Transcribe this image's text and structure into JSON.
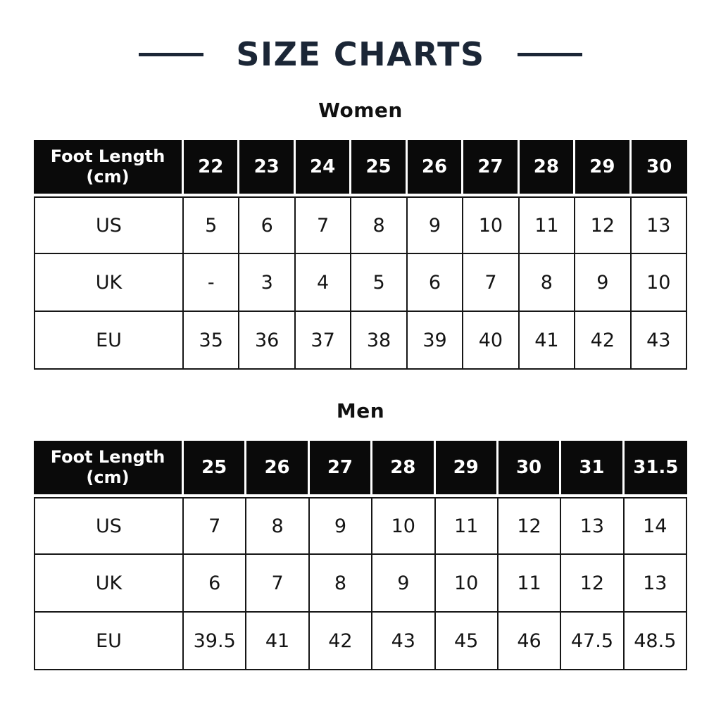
{
  "header": {
    "title": "SIZE CHARTS"
  },
  "colors": {
    "accent_navy": "#1b2636",
    "table_header_bg": "#0a0a0a",
    "grid_line": "#161616",
    "background": "#ffffff"
  },
  "chart_data": [
    {
      "type": "table",
      "title": "Women",
      "columns": [
        "Foot Length (cm)",
        "22",
        "23",
        "24",
        "25",
        "26",
        "27",
        "28",
        "29",
        "30"
      ],
      "rows": [
        {
          "label": "US",
          "values": [
            "5",
            "6",
            "7",
            "8",
            "9",
            "10",
            "11",
            "12",
            "13"
          ]
        },
        {
          "label": "UK",
          "values": [
            "-",
            "3",
            "4",
            "5",
            "6",
            "7",
            "8",
            "9",
            "10"
          ]
        },
        {
          "label": "EU",
          "values": [
            "35",
            "36",
            "37",
            "38",
            "39",
            "40",
            "41",
            "42",
            "43"
          ]
        }
      ]
    },
    {
      "type": "table",
      "title": "Men",
      "columns": [
        "Foot Length (cm)",
        "25",
        "26",
        "27",
        "28",
        "29",
        "30",
        "31",
        "31.5"
      ],
      "rows": [
        {
          "label": "US",
          "values": [
            "7",
            "8",
            "9",
            "10",
            "11",
            "12",
            "13",
            "14"
          ]
        },
        {
          "label": "UK",
          "values": [
            "6",
            "7",
            "8",
            "9",
            "10",
            "11",
            "12",
            "13"
          ]
        },
        {
          "label": "EU",
          "values": [
            "39.5",
            "41",
            "42",
            "43",
            "45",
            "46",
            "47.5",
            "48.5"
          ]
        }
      ]
    }
  ]
}
